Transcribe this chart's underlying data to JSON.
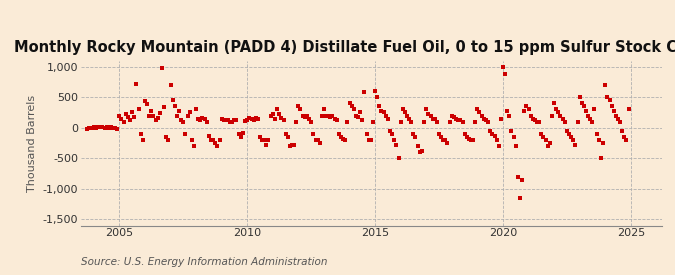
{
  "title": "Monthly Rocky Mountain (PADD 4) Distillate Fuel Oil, 0 to 15 ppm Sulfur Stock Change",
  "ylabel": "Thousand Barrels",
  "source": "Source: U.S. Energy Information Administration",
  "background_color": "#faebd7",
  "marker_color": "#cc0000",
  "xlim": [
    2003.5,
    2026.2
  ],
  "ylim": [
    -1600,
    1100
  ],
  "yticks": [
    -1500,
    -1000,
    -500,
    0,
    500,
    1000
  ],
  "xticks": [
    2005,
    2010,
    2015,
    2020,
    2025
  ],
  "title_fontsize": 10.5,
  "ylabel_fontsize": 8,
  "source_fontsize": 7.5,
  "data_x": [
    2003.75,
    2003.83,
    2003.92,
    2004.0,
    2004.08,
    2004.17,
    2004.25,
    2004.33,
    2004.42,
    2004.5,
    2004.58,
    2004.67,
    2004.75,
    2004.83,
    2004.92,
    2005.0,
    2005.08,
    2005.17,
    2005.25,
    2005.33,
    2005.42,
    2005.5,
    2005.58,
    2005.67,
    2005.75,
    2005.83,
    2005.92,
    2006.0,
    2006.08,
    2006.17,
    2006.25,
    2006.33,
    2006.42,
    2006.5,
    2006.58,
    2006.67,
    2006.75,
    2006.83,
    2006.92,
    2007.0,
    2007.08,
    2007.17,
    2007.25,
    2007.33,
    2007.42,
    2007.5,
    2007.58,
    2007.67,
    2007.75,
    2007.83,
    2007.92,
    2008.0,
    2008.08,
    2008.17,
    2008.25,
    2008.33,
    2008.42,
    2008.5,
    2008.58,
    2008.67,
    2008.75,
    2008.83,
    2008.92,
    2009.0,
    2009.08,
    2009.17,
    2009.25,
    2009.33,
    2009.42,
    2009.5,
    2009.58,
    2009.67,
    2009.75,
    2009.83,
    2009.92,
    2010.0,
    2010.08,
    2010.17,
    2010.25,
    2010.33,
    2010.42,
    2010.5,
    2010.58,
    2010.67,
    2010.75,
    2010.83,
    2010.92,
    2011.0,
    2011.08,
    2011.17,
    2011.25,
    2011.33,
    2011.42,
    2011.5,
    2011.58,
    2011.67,
    2011.75,
    2011.83,
    2011.92,
    2012.0,
    2012.08,
    2012.17,
    2012.25,
    2012.33,
    2012.42,
    2012.5,
    2012.58,
    2012.67,
    2012.75,
    2012.83,
    2012.92,
    2013.0,
    2013.08,
    2013.17,
    2013.25,
    2013.33,
    2013.42,
    2013.5,
    2013.58,
    2013.67,
    2013.75,
    2013.83,
    2013.92,
    2014.0,
    2014.08,
    2014.17,
    2014.25,
    2014.33,
    2014.42,
    2014.5,
    2014.58,
    2014.67,
    2014.75,
    2014.83,
    2014.92,
    2015.0,
    2015.08,
    2015.17,
    2015.25,
    2015.33,
    2015.42,
    2015.5,
    2015.58,
    2015.67,
    2015.75,
    2015.83,
    2015.92,
    2016.0,
    2016.08,
    2016.17,
    2016.25,
    2016.33,
    2016.42,
    2016.5,
    2016.58,
    2016.67,
    2016.75,
    2016.83,
    2016.92,
    2017.0,
    2017.08,
    2017.17,
    2017.25,
    2017.33,
    2017.42,
    2017.5,
    2017.58,
    2017.67,
    2017.75,
    2017.83,
    2017.92,
    2018.0,
    2018.08,
    2018.17,
    2018.25,
    2018.33,
    2018.42,
    2018.5,
    2018.58,
    2018.67,
    2018.75,
    2018.83,
    2018.92,
    2019.0,
    2019.08,
    2019.17,
    2019.25,
    2019.33,
    2019.42,
    2019.5,
    2019.58,
    2019.67,
    2019.75,
    2019.83,
    2019.92,
    2020.0,
    2020.08,
    2020.17,
    2020.25,
    2020.33,
    2020.42,
    2020.5,
    2020.58,
    2020.67,
    2020.75,
    2020.83,
    2020.92,
    2021.0,
    2021.08,
    2021.17,
    2021.25,
    2021.33,
    2021.42,
    2021.5,
    2021.58,
    2021.67,
    2021.75,
    2021.83,
    2021.92,
    2022.0,
    2022.08,
    2022.17,
    2022.25,
    2022.33,
    2022.42,
    2022.5,
    2022.58,
    2022.67,
    2022.75,
    2022.83,
    2022.92,
    2023.0,
    2023.08,
    2023.17,
    2023.25,
    2023.33,
    2023.42,
    2023.5,
    2023.58,
    2023.67,
    2023.75,
    2023.83,
    2023.92,
    2024.0,
    2024.08,
    2024.17,
    2024.25,
    2024.33,
    2024.42,
    2024.5,
    2024.58,
    2024.67,
    2024.75,
    2024.83,
    2024.92
  ],
  "data_y": [
    -20,
    -10,
    -5,
    5,
    -10,
    10,
    15,
    5,
    -8,
    10,
    -5,
    5,
    -5,
    -10,
    -15,
    200,
    150,
    100,
    220,
    170,
    130,
    250,
    180,
    710,
    300,
    -100,
    -200,
    440,
    390,
    200,
    280,
    200,
    130,
    160,
    240,
    970,
    340,
    -150,
    -200,
    700,
    450,
    350,
    200,
    280,
    120,
    100,
    -100,
    200,
    250,
    -200,
    -300,
    300,
    140,
    130,
    160,
    150,
    100,
    -130,
    -200,
    -200,
    -250,
    -300,
    -200,
    150,
    120,
    130,
    120,
    100,
    100,
    130,
    130,
    -100,
    -150,
    -80,
    110,
    130,
    160,
    140,
    130,
    160,
    140,
    -150,
    -200,
    -200,
    -280,
    -200,
    200,
    220,
    150,
    300,
    220,
    160,
    120,
    -100,
    -150,
    -300,
    -280,
    -280,
    100,
    350,
    300,
    200,
    180,
    200,
    140,
    100,
    -100,
    -200,
    -200,
    -250,
    200,
    300,
    200,
    200,
    170,
    200,
    140,
    120,
    -100,
    -150,
    -180,
    -200,
    100,
    400,
    350,
    300,
    200,
    180,
    250,
    120,
    580,
    -100,
    -200,
    -200,
    100,
    600,
    500,
    350,
    280,
    250,
    200,
    150,
    -50,
    -100,
    -200,
    -280,
    -500,
    100,
    300,
    250,
    200,
    140,
    100,
    -100,
    -150,
    -300,
    -400,
    -380,
    100,
    300,
    220,
    200,
    150,
    140,
    100,
    -100,
    -150,
    -200,
    -200,
    -250,
    100,
    200,
    180,
    150,
    130,
    120,
    100,
    -100,
    -150,
    -180,
    -200,
    -200,
    100,
    300,
    250,
    200,
    150,
    130,
    100,
    -50,
    -100,
    -130,
    -200,
    -300,
    150,
    1000,
    880,
    280,
    200,
    -60,
    -150,
    -300,
    -800,
    -1150,
    -850,
    280,
    350,
    300,
    200,
    150,
    120,
    100,
    100,
    -100,
    -150,
    -200,
    -300,
    -250,
    200,
    400,
    300,
    250,
    200,
    150,
    100,
    -50,
    -100,
    -150,
    -200,
    -280,
    100,
    500,
    400,
    350,
    280,
    200,
    150,
    100,
    300,
    -100,
    -200,
    -500,
    -250,
    700,
    500,
    450,
    350,
    280,
    200,
    150,
    100,
    -50,
    -150,
    -200,
    300
  ]
}
